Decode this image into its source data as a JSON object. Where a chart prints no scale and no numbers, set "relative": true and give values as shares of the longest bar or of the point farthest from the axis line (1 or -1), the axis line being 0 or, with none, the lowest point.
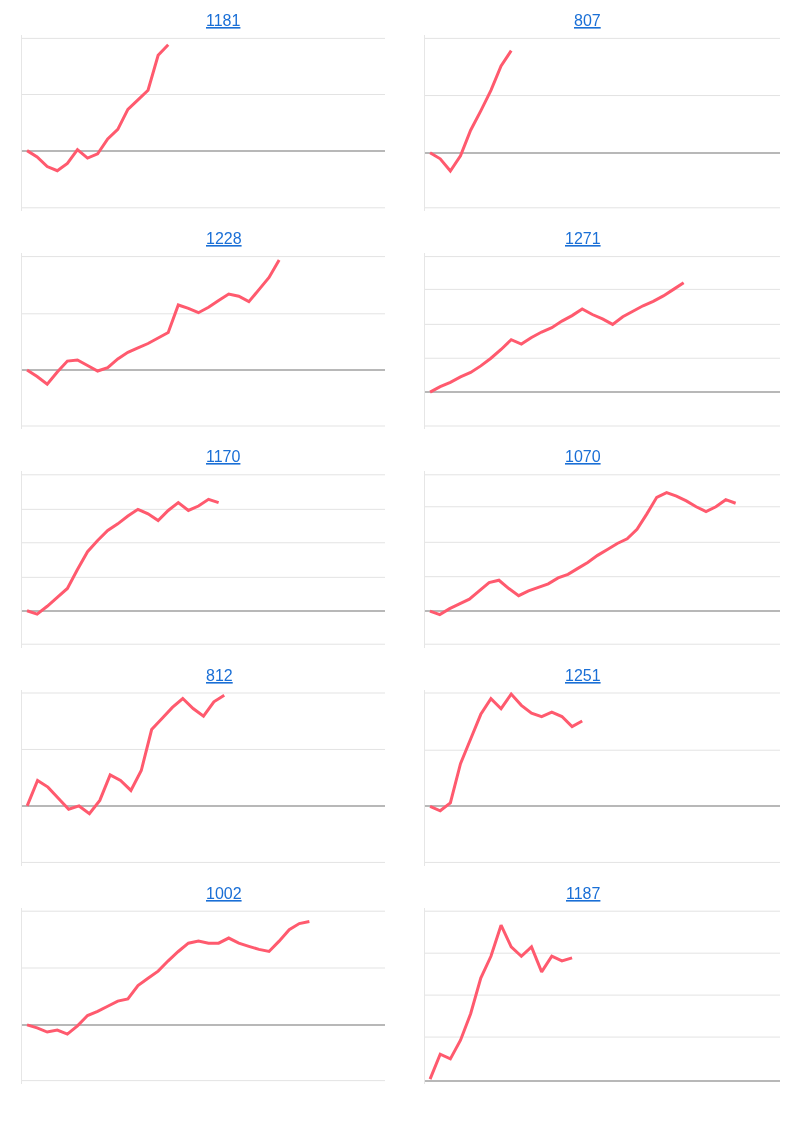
{
  "chart_data": [
    {
      "type": "line",
      "title": "1181",
      "relative": true,
      "ref_lines": [
        {
          "axis": "y",
          "value": 0.53
        },
        {
          "axis": "y",
          "value": 1.06
        },
        {
          "axis": "y",
          "value": -0.54
        }
      ],
      "marker": "none",
      "line_style": "solid",
      "categories": [
        null,
        null,
        null,
        null,
        null,
        null,
        null,
        null,
        null,
        null,
        null,
        null,
        null,
        null,
        null,
        null,
        null,
        null,
        null,
        null,
        null,
        null,
        null,
        null,
        null,
        null,
        null,
        null,
        null,
        null,
        null,
        null,
        null,
        null,
        null,
        null
      ],
      "series": [
        {
          "color": "#ff5a6e",
          "values": [
            0,
            -0.06,
            -0.15,
            -0.19,
            -0.12,
            0.01,
            -0.07,
            -0.03,
            0.11,
            0.2,
            0.39,
            0.48,
            0.57,
            0.9,
            1,
            null,
            null,
            null,
            null,
            null,
            null,
            null,
            null,
            null,
            null,
            null,
            null,
            null,
            null,
            null,
            null,
            null,
            null,
            null,
            null,
            null
          ]
        }
      ]
    },
    {
      "type": "line",
      "title": "807",
      "relative": true,
      "ref_lines": [
        {
          "axis": "y",
          "value": 0.56
        },
        {
          "axis": "y",
          "value": 1.12
        },
        {
          "axis": "y",
          "value": -0.54
        }
      ],
      "marker": "none",
      "line_style": "solid",
      "categories": [
        null,
        null,
        null,
        null,
        null,
        null,
        null,
        null,
        null,
        null,
        null,
        null,
        null,
        null,
        null,
        null,
        null,
        null,
        null,
        null,
        null,
        null,
        null,
        null,
        null,
        null,
        null,
        null,
        null,
        null,
        null,
        null,
        null,
        null,
        null
      ],
      "series": [
        {
          "color": "#ff5a6e",
          "values": [
            0,
            -0.06,
            -0.18,
            -0.03,
            0.22,
            0.41,
            0.61,
            0.85,
            1,
            null,
            null,
            null,
            null,
            null,
            null,
            null,
            null,
            null,
            null,
            null,
            null,
            null,
            null,
            null,
            null,
            null,
            null,
            null,
            null,
            null,
            null,
            null,
            null,
            null,
            null
          ]
        }
      ]
    },
    {
      "type": "line",
      "title": "1228",
      "relative": true,
      "ref_lines": [
        {
          "axis": "y",
          "value": 0.51
        },
        {
          "axis": "y",
          "value": 1.03
        },
        {
          "axis": "y",
          "value": -0.51
        }
      ],
      "marker": "none",
      "line_style": "solid",
      "categories": [
        null,
        null,
        null,
        null,
        null,
        null,
        null,
        null,
        null,
        null,
        null,
        null,
        null,
        null,
        null,
        null,
        null,
        null,
        null,
        null,
        null,
        null,
        null,
        null,
        null,
        null,
        null,
        null,
        null,
        null,
        null,
        null,
        null,
        null,
        null,
        null
      ],
      "series": [
        {
          "color": "#ff5a6e",
          "values": [
            0,
            -0.06,
            -0.13,
            -0.02,
            0.08,
            0.09,
            0.04,
            -0.01,
            0.02,
            0.1,
            0.16,
            0.2,
            0.24,
            0.29,
            0.34,
            0.59,
            0.56,
            0.52,
            0.57,
            0.63,
            0.69,
            0.67,
            0.62,
            0.73,
            0.84,
            1,
            null,
            null,
            null,
            null,
            null,
            null,
            null,
            null,
            null,
            null
          ]
        }
      ]
    },
    {
      "type": "line",
      "title": "1271",
      "relative": true,
      "ref_lines": [
        {
          "axis": "y",
          "value": 0.31
        },
        {
          "axis": "y",
          "value": 0.62
        },
        {
          "axis": "y",
          "value": 0.94
        },
        {
          "axis": "y",
          "value": 1.24
        },
        {
          "axis": "y",
          "value": -0.31
        }
      ],
      "marker": "none",
      "line_style": "solid",
      "categories": [
        null,
        null,
        null,
        null,
        null,
        null,
        null,
        null,
        null,
        null,
        null,
        null,
        null,
        null,
        null,
        null,
        null,
        null,
        null,
        null,
        null,
        null,
        null,
        null,
        null,
        null,
        null,
        null,
        null,
        null,
        null,
        null,
        null,
        null,
        null
      ],
      "series": [
        {
          "color": "#ff5a6e",
          "values": [
            0,
            0.05,
            0.09,
            0.14,
            0.18,
            0.24,
            0.31,
            0.39,
            0.48,
            0.44,
            0.5,
            0.55,
            0.59,
            0.65,
            0.7,
            0.76,
            0.71,
            0.67,
            0.62,
            0.69,
            0.74,
            0.79,
            0.83,
            0.88,
            0.94,
            1,
            null,
            null,
            null,
            null,
            null,
            null,
            null,
            null,
            null
          ]
        }
      ]
    },
    {
      "type": "line",
      "title": "1170",
      "relative": true,
      "ref_lines": [
        {
          "axis": "y",
          "value": 0.3
        },
        {
          "axis": "y",
          "value": 0.61
        },
        {
          "axis": "y",
          "value": 0.91
        },
        {
          "axis": "y",
          "value": 1.22
        },
        {
          "axis": "y",
          "value": -0.3
        }
      ],
      "marker": "none",
      "line_style": "solid",
      "categories": [
        null,
        null,
        null,
        null,
        null,
        null,
        null,
        null,
        null,
        null,
        null,
        null,
        null,
        null,
        null,
        null,
        null,
        null,
        null,
        null,
        null,
        null,
        null,
        null,
        null,
        null,
        null,
        null,
        null,
        null,
        null,
        null,
        null,
        null,
        null,
        null
      ],
      "series": [
        {
          "color": "#ff5a6e",
          "values": [
            0,
            -0.03,
            0.04,
            0.12,
            0.2,
            0.37,
            0.53,
            0.63,
            0.72,
            0.78,
            0.85,
            0.91,
            0.87,
            0.81,
            0.9,
            0.97,
            0.9,
            0.94,
            1,
            0.97,
            null,
            null,
            null,
            null,
            null,
            null,
            null,
            null,
            null,
            null,
            null,
            null,
            null,
            null,
            null,
            null
          ]
        }
      ]
    },
    {
      "type": "line",
      "title": "1070",
      "relative": true,
      "ref_lines": [
        {
          "axis": "y",
          "value": 0.29
        },
        {
          "axis": "y",
          "value": 0.58
        },
        {
          "axis": "y",
          "value": 0.88
        },
        {
          "axis": "y",
          "value": 1.15
        },
        {
          "axis": "y",
          "value": -0.28
        }
      ],
      "marker": "none",
      "line_style": "solid",
      "categories": [
        null,
        null,
        null,
        null,
        null,
        null,
        null,
        null,
        null,
        null,
        null,
        null,
        null,
        null,
        null,
        null,
        null,
        null,
        null,
        null,
        null,
        null,
        null,
        null,
        null,
        null,
        null,
        null,
        null,
        null,
        null,
        null,
        null,
        null,
        null,
        null
      ],
      "series": [
        {
          "color": "#ff5a6e",
          "values": [
            0,
            -0.03,
            0.02,
            0.06,
            0.1,
            0.17,
            0.24,
            0.26,
            0.19,
            0.13,
            0.17,
            0.2,
            0.23,
            0.28,
            0.31,
            0.36,
            0.41,
            0.47,
            0.52,
            0.57,
            0.61,
            0.69,
            0.82,
            0.96,
            1,
            0.97,
            0.93,
            0.88,
            0.84,
            0.88,
            0.94,
            0.91,
            null,
            null,
            null,
            null
          ]
        }
      ]
    },
    {
      "type": "line",
      "title": "812",
      "relative": true,
      "ref_lines": [
        {
          "axis": "y",
          "value": 0.51
        },
        {
          "axis": "y",
          "value": 1.02
        },
        {
          "axis": "y",
          "value": -0.51
        }
      ],
      "marker": "none",
      "line_style": "solid",
      "categories": [
        null,
        null,
        null,
        null,
        null,
        null,
        null,
        null,
        null,
        null,
        null,
        null,
        null,
        null,
        null,
        null,
        null,
        null,
        null,
        null,
        null,
        null,
        null,
        null,
        null,
        null,
        null,
        null,
        null,
        null,
        null,
        null,
        null,
        null,
        null
      ],
      "series": [
        {
          "color": "#ff5a6e",
          "values": [
            0,
            0.23,
            0.17,
            0.07,
            -0.03,
            0,
            -0.07,
            0.05,
            0.28,
            0.23,
            0.14,
            0.32,
            0.69,
            0.79,
            0.89,
            0.97,
            0.88,
            0.81,
            0.94,
            1,
            null,
            null,
            null,
            null,
            null,
            null,
            null,
            null,
            null,
            null,
            null,
            null,
            null,
            null,
            null
          ]
        }
      ]
    },
    {
      "type": "line",
      "title": "1251",
      "relative": true,
      "ref_lines": [
        {
          "axis": "y",
          "value": 0.5
        },
        {
          "axis": "y",
          "value": 1.01
        },
        {
          "axis": "y",
          "value": -0.5
        }
      ],
      "marker": "none",
      "line_style": "solid",
      "categories": [
        null,
        null,
        null,
        null,
        null,
        null,
        null,
        null,
        null,
        null,
        null,
        null,
        null,
        null,
        null,
        null,
        null,
        null,
        null,
        null,
        null,
        null,
        null,
        null,
        null,
        null,
        null,
        null,
        null,
        null,
        null,
        null,
        null,
        null,
        null
      ],
      "series": [
        {
          "color": "#ff5a6e",
          "values": [
            0,
            -0.04,
            0.03,
            0.38,
            0.6,
            0.82,
            0.96,
            0.87,
            1,
            0.9,
            0.83,
            0.8,
            0.84,
            0.8,
            0.71,
            0.76,
            null,
            null,
            null,
            null,
            null,
            null,
            null,
            null,
            null,
            null,
            null,
            null,
            null,
            null,
            null,
            null,
            null,
            null,
            null
          ]
        }
      ]
    },
    {
      "type": "line",
      "title": "1002",
      "relative": true,
      "ref_lines": [
        {
          "axis": "y",
          "value": 0.55
        },
        {
          "axis": "y",
          "value": 1.1
        },
        {
          "axis": "y",
          "value": -0.54
        }
      ],
      "marker": "none",
      "line_style": "solid",
      "categories": [
        null,
        null,
        null,
        null,
        null,
        null,
        null,
        null,
        null,
        null,
        null,
        null,
        null,
        null,
        null,
        null,
        null,
        null,
        null,
        null,
        null,
        null,
        null,
        null,
        null,
        null,
        null,
        null,
        null,
        null,
        null,
        null,
        null,
        null,
        null,
        null
      ],
      "series": [
        {
          "color": "#ff5a6e",
          "values": [
            0,
            -0.03,
            -0.07,
            -0.05,
            -0.09,
            -0.01,
            0.09,
            0.13,
            0.18,
            0.23,
            0.25,
            0.38,
            0.45,
            0.52,
            0.62,
            0.71,
            0.79,
            0.81,
            0.79,
            0.79,
            0.84,
            0.79,
            0.76,
            0.73,
            0.71,
            0.81,
            0.92,
            0.98,
            1,
            null,
            null,
            null,
            null,
            null,
            null,
            null
          ]
        }
      ]
    },
    {
      "type": "line",
      "title": "1187",
      "relative": true,
      "ref_lines": [
        {
          "axis": "y",
          "value": 0.28
        },
        {
          "axis": "y",
          "value": 0.55
        },
        {
          "axis": "y",
          "value": 0.82
        },
        {
          "axis": "y",
          "value": 1.09
        }
      ],
      "marker": "none",
      "line_style": "solid",
      "categories": [
        null,
        null,
        null,
        null,
        null,
        null,
        null,
        null,
        null,
        null,
        null,
        null,
        null,
        null,
        null,
        null,
        null,
        null,
        null,
        null,
        null,
        null,
        null,
        null,
        null,
        null,
        null,
        null,
        null,
        null,
        null,
        null,
        null,
        null,
        null
      ],
      "series": [
        {
          "color": "#ff5a6e",
          "values": [
            0.01,
            0.17,
            0.14,
            0.26,
            0.43,
            0.66,
            0.8,
            1,
            0.86,
            0.8,
            0.86,
            0.7,
            0.8,
            0.77,
            0.79,
            null,
            null,
            null,
            null,
            null,
            null,
            null,
            null,
            null,
            null,
            null,
            null,
            null,
            null,
            null,
            null,
            null,
            null,
            null,
            null
          ]
        }
      ]
    }
  ]
}
